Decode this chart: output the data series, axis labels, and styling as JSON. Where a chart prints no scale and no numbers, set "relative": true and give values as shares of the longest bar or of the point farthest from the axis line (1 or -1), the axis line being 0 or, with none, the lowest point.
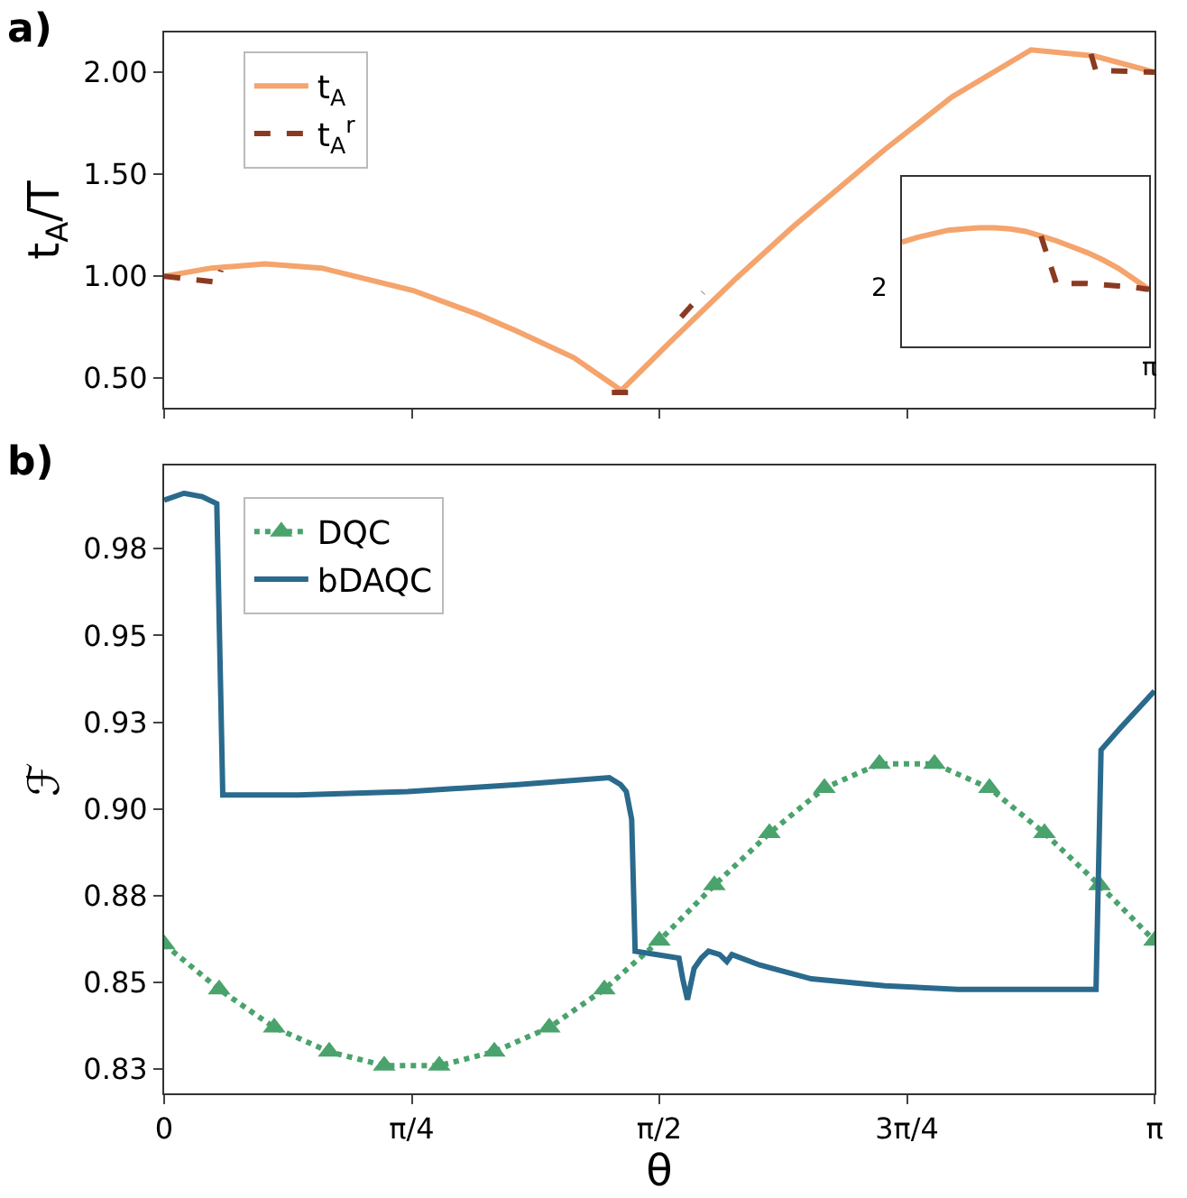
{
  "chart_data": [
    {
      "type": "line",
      "annotations": [
        "a)"
      ],
      "ylabel": "t$_{A}$/T",
      "legend": "top left",
      "grid": false,
      "tick_labels": "y",
      "xlim": [
        0,
        3.1416
      ],
      "xticks": [
        {
          "value": 0,
          "label": null
        },
        {
          "value": 0.7854,
          "label": null
        },
        {
          "value": 1.5708,
          "label": null
        },
        {
          "value": 2.3562,
          "label": null
        },
        {
          "value": 3.1416,
          "label": null
        }
      ],
      "ylim": [
        0.355,
        2.195
      ],
      "yticks": [
        {
          "value": 0.5,
          "label": "0.50"
        },
        {
          "value": 1.0,
          "label": "1.00"
        },
        {
          "value": 1.5,
          "label": "1.50"
        },
        {
          "value": 2.0,
          "label": "2.00"
        }
      ],
      "series": [
        {
          "name": "t$_{A}$",
          "color": "#f4a46c",
          "line_style": "solid",
          "marker": "none",
          "x": [
            0,
            0.15,
            0.32,
            0.5,
            0.79,
            1.0,
            1.12,
            1.3,
            1.45,
            1.6,
            1.815,
            2.0,
            2.285,
            2.5,
            2.75,
            2.95,
            3.1416
          ],
          "values": [
            1.0,
            1.04,
            1.06,
            1.04,
            0.93,
            0.81,
            0.73,
            0.6,
            0.44,
            0.67,
            0.99,
            1.25,
            1.62,
            1.88,
            2.11,
            2.08,
            2.0
          ]
        },
        {
          "name": "t$_{A}$$^{r}$",
          "color": "#8b3a22",
          "line_style": "dashed",
          "marker": "none",
          "x": [
            0,
            0.17,
            0.18,
            null,
            1.42,
            1.48,
            null,
            1.64,
            1.71,
            null,
            2.94,
            2.955,
            3.1416
          ],
          "values": [
            1.0,
            0.97,
            1.03,
            null,
            0.43,
            0.43,
            null,
            0.8,
            0.92,
            null,
            2.09,
            2.01,
            2.0
          ]
        }
      ]
    },
    {
      "type": "line",
      "annotations": [
        "b)"
      ],
      "xlabel": "θ",
      "ylabel": "ℱ",
      "legend": "top left",
      "grid": false,
      "xlim": [
        0,
        3.1416
      ],
      "xticks": [
        {
          "value": 0,
          "label": "0"
        },
        {
          "value": 0.7854,
          "label": "π/4"
        },
        {
          "value": 1.5708,
          "label": "π/2"
        },
        {
          "value": 2.3562,
          "label": "3π/4"
        },
        {
          "value": 3.1416,
          "label": "π"
        }
      ],
      "ylim": [
        0.818,
        0.999
      ],
      "yticks": [
        {
          "value": 0.825,
          "label": "0.83"
        },
        {
          "value": 0.85,
          "label": "0.85"
        },
        {
          "value": 0.875,
          "label": "0.88"
        },
        {
          "value": 0.9,
          "label": "0.90"
        },
        {
          "value": 0.925,
          "label": "0.93"
        },
        {
          "value": 0.95,
          "label": "0.95"
        },
        {
          "value": 0.975,
          "label": "0.98"
        }
      ],
      "series": [
        {
          "name": "DQC",
          "color": "#4aa36c",
          "line_style": "dotted",
          "marker": "triangle",
          "x": [
            0,
            0.1745,
            0.3491,
            0.5236,
            0.6981,
            0.8727,
            1.0472,
            1.2217,
            1.3963,
            1.5708,
            1.7453,
            1.9199,
            2.0944,
            2.2689,
            2.4435,
            2.618,
            2.7925,
            2.9671,
            3.1416
          ],
          "values": [
            0.861,
            0.848,
            0.837,
            0.83,
            0.826,
            0.826,
            0.83,
            0.837,
            0.848,
            0.862,
            0.878,
            0.893,
            0.906,
            0.913,
            0.913,
            0.906,
            0.893,
            0.878,
            0.862
          ]
        },
        {
          "name": "bDAQC",
          "color": "#2a6a8c",
          "line_style": "solid",
          "marker": "none",
          "x": [
            0,
            0.063,
            0.121,
            0.167,
            0.186,
            0.424,
            0.772,
            1.122,
            1.412,
            1.448,
            1.466,
            1.483,
            1.494,
            1.564,
            1.633,
            1.645,
            1.66,
            1.681,
            1.704,
            1.727,
            1.762,
            1.785,
            1.801,
            1.889,
            2.053,
            2.286,
            2.518,
            2.751,
            2.956,
            2.972,
            3.03,
            3.1416
          ],
          "values": [
            0.989,
            0.991,
            0.99,
            0.988,
            0.904,
            0.904,
            0.905,
            0.907,
            0.909,
            0.907,
            0.905,
            0.897,
            0.859,
            0.858,
            0.857,
            0.851,
            0.845,
            0.854,
            0.857,
            0.859,
            0.858,
            0.856,
            0.858,
            0.855,
            0.851,
            0.849,
            0.848,
            0.848,
            0.848,
            0.917,
            0.923,
            0.934
          ]
        }
      ]
    },
    {
      "type": "line",
      "grid": false,
      "legend": false,
      "relative": true,
      "annotations": [
        "π",
        "2"
      ],
      "categories": [
        null,
        null,
        null,
        null,
        null,
        null,
        null,
        null,
        null,
        null,
        null,
        null,
        null,
        null,
        null,
        null,
        null
      ],
      "series": [
        {
          "color": "#f4a46c",
          "line_style": "solid",
          "marker": "none",
          "values": [
            0.88,
            0.92,
            0.95,
            0.98,
            0.99,
            1.0,
            1.0,
            0.99,
            0.97,
            0.93,
            0.89,
            0.84,
            0.79,
            0.73,
            0.66,
            0.57,
            0.48
          ]
        },
        {
          "color": "#8b3a22",
          "line_style": "dashed",
          "marker": "none",
          "values": [
            null,
            null,
            null,
            null,
            null,
            null,
            null,
            null,
            null,
            0.93,
            0.53,
            0.53,
            0.53,
            0.52,
            0.51,
            0.5,
            0.48
          ]
        }
      ]
    }
  ]
}
